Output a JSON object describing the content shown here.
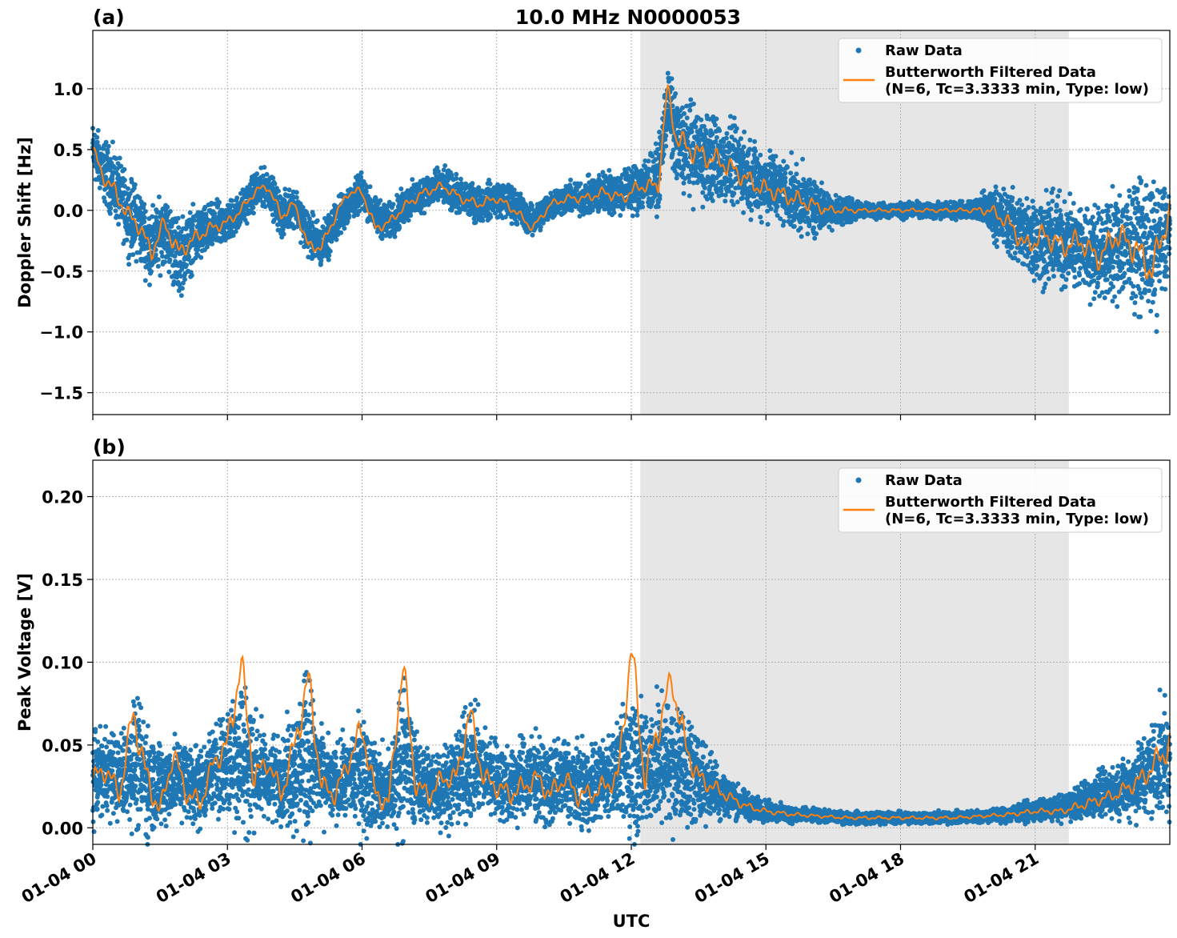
{
  "figure": {
    "title": "10.0 MHz N0000053",
    "xlabel": "UTC",
    "colors": {
      "raw": "#1f77b4",
      "filtered": "#ff7f0e",
      "shade": "#e6e6e6",
      "grid": "#b0b0b0"
    }
  },
  "chart_data": [
    {
      "type": "scatter",
      "panel_label": "(a)",
      "title": "10.0 MHz N0000053",
      "xlabel": "",
      "ylabel": "Doppler Shift [Hz]",
      "x_unit": "hours UTC on 01-04",
      "xlim": [
        0,
        24
      ],
      "ylim": [
        -1.68,
        1.48
      ],
      "yticks": [
        1.0,
        0.5,
        0.0,
        -0.5,
        -1.0,
        -1.5
      ],
      "ytick_labels": [
        "1.0",
        "0.5",
        "0.0",
        "−0.5",
        "−1.0",
        "−1.5"
      ],
      "grid": true,
      "legend_position": "top-right",
      "shaded_span": [
        12.2,
        21.75
      ],
      "series": [
        {
          "name": "Raw Data",
          "style": "points",
          "x": [
            0.0,
            0.2,
            0.5,
            0.8,
            1.0,
            1.3,
            1.6,
            1.9,
            2.2,
            2.6,
            3.0,
            3.3,
            3.6,
            3.9,
            4.2,
            4.5,
            4.8,
            5.1,
            5.4,
            5.7,
            6.0,
            6.3,
            6.6,
            7.0,
            7.4,
            7.8,
            8.2,
            8.6,
            9.0,
            9.4,
            9.8,
            10.2,
            10.6,
            11.0,
            11.4,
            11.8,
            12.2,
            12.6,
            12.8,
            13.0,
            13.3,
            13.6,
            14.0,
            14.4,
            14.8,
            15.2,
            15.6,
            16.0,
            16.4,
            16.8,
            17.2,
            17.6,
            18.0,
            18.4,
            18.8,
            19.2,
            19.6,
            20.0,
            20.4,
            20.8,
            21.2,
            21.6,
            22.0,
            22.4,
            22.8,
            23.2,
            23.6,
            24.0
          ],
          "y": [
            0.5,
            0.35,
            0.2,
            -0.05,
            -0.1,
            -0.3,
            -0.15,
            -0.4,
            -0.25,
            -0.15,
            -0.1,
            0.0,
            0.15,
            0.2,
            -0.05,
            0.05,
            -0.2,
            -0.3,
            -0.1,
            0.05,
            0.15,
            -0.05,
            -0.1,
            0.05,
            0.15,
            0.2,
            0.1,
            0.05,
            0.1,
            0.05,
            -0.1,
            0.05,
            0.1,
            0.1,
            0.15,
            0.15,
            0.2,
            0.25,
            0.9,
            0.55,
            0.5,
            0.45,
            0.4,
            0.35,
            0.25,
            0.2,
            0.1,
            0.05,
            0.0,
            0.0,
            0.0,
            0.0,
            0.0,
            0.0,
            0.0,
            0.0,
            0.0,
            0.0,
            -0.1,
            -0.2,
            -0.25,
            -0.25,
            -0.3,
            -0.35,
            -0.3,
            -0.25,
            -0.35,
            -0.2
          ],
          "spread": [
            0.18,
            0.2,
            0.22,
            0.24,
            0.25,
            0.24,
            0.22,
            0.26,
            0.2,
            0.16,
            0.14,
            0.12,
            0.12,
            0.12,
            0.14,
            0.13,
            0.15,
            0.15,
            0.14,
            0.12,
            0.12,
            0.12,
            0.12,
            0.12,
            0.12,
            0.12,
            0.12,
            0.12,
            0.12,
            0.12,
            0.1,
            0.1,
            0.1,
            0.12,
            0.14,
            0.15,
            0.18,
            0.2,
            0.25,
            0.3,
            0.3,
            0.3,
            0.28,
            0.26,
            0.24,
            0.22,
            0.22,
            0.2,
            0.12,
            0.08,
            0.05,
            0.05,
            0.05,
            0.05,
            0.05,
            0.05,
            0.06,
            0.15,
            0.22,
            0.26,
            0.3,
            0.3,
            0.3,
            0.3,
            0.35,
            0.4,
            0.45,
            0.35
          ]
        },
        {
          "name": "Butterworth Filtered Data\n(N=6, Tc=3.3333 min, Type: low)",
          "style": "line",
          "x": [
            0.0,
            0.2,
            0.5,
            0.8,
            1.0,
            1.3,
            1.6,
            1.9,
            2.2,
            2.6,
            3.0,
            3.3,
            3.6,
            3.9,
            4.2,
            4.5,
            4.8,
            5.1,
            5.4,
            5.7,
            6.0,
            6.3,
            6.6,
            7.0,
            7.4,
            7.8,
            8.2,
            8.6,
            9.0,
            9.4,
            9.8,
            10.2,
            10.6,
            11.0,
            11.4,
            11.8,
            12.2,
            12.6,
            12.8,
            13.0,
            13.3,
            13.6,
            14.0,
            14.4,
            14.8,
            15.2,
            15.6,
            16.0,
            16.4,
            16.8,
            17.2,
            17.6,
            18.0,
            18.4,
            18.8,
            19.2,
            19.6,
            20.0,
            20.4,
            20.8,
            21.2,
            21.6,
            22.0,
            22.4,
            22.8,
            23.2,
            23.6,
            24.0
          ],
          "y": [
            0.5,
            0.3,
            0.15,
            -0.05,
            -0.1,
            -0.35,
            -0.1,
            -0.35,
            -0.25,
            -0.15,
            -0.1,
            0.0,
            0.15,
            0.2,
            -0.05,
            0.05,
            -0.3,
            -0.3,
            -0.05,
            0.15,
            0.15,
            -0.15,
            -0.1,
            0.05,
            0.15,
            0.2,
            0.1,
            0.05,
            0.1,
            0.0,
            -0.15,
            0.05,
            0.1,
            0.1,
            0.15,
            0.1,
            0.2,
            0.2,
            1.0,
            0.6,
            0.5,
            0.45,
            0.4,
            0.3,
            0.2,
            0.15,
            0.1,
            0.05,
            0.0,
            0.0,
            0.0,
            0.0,
            0.0,
            0.0,
            0.0,
            0.0,
            0.0,
            0.0,
            -0.1,
            -0.3,
            -0.2,
            -0.3,
            -0.25,
            -0.4,
            -0.2,
            -0.3,
            -0.5,
            0.0
          ]
        }
      ]
    },
    {
      "type": "scatter",
      "panel_label": "(b)",
      "title": "",
      "xlabel": "UTC",
      "ylabel": "Peak Voltage [V]",
      "x_unit": "hours UTC on 01-04",
      "xlim": [
        0,
        24
      ],
      "ylim": [
        -0.01,
        0.222
      ],
      "yticks": [
        0.2,
        0.15,
        0.1,
        0.05,
        0.0
      ],
      "ytick_labels": [
        "0.20",
        "0.15",
        "0.10",
        "0.05",
        "0.00"
      ],
      "xticks": [
        0,
        3,
        6,
        9,
        12,
        15,
        18,
        21
      ],
      "xtick_labels": [
        "01-04 00",
        "01-04 03",
        "01-04 06",
        "01-04 09",
        "01-04 12",
        "01-04 15",
        "01-04 18",
        "01-04 21"
      ],
      "grid": true,
      "legend_position": "top-right",
      "shaded_span": [
        12.2,
        21.75
      ],
      "series": [
        {
          "name": "Raw Data",
          "style": "points",
          "x": [
            0.0,
            0.3,
            0.6,
            0.9,
            1.2,
            1.5,
            1.8,
            2.1,
            2.4,
            2.7,
            3.0,
            3.3,
            3.6,
            3.9,
            4.2,
            4.5,
            4.8,
            5.1,
            5.4,
            5.7,
            6.0,
            6.3,
            6.6,
            6.9,
            7.2,
            7.5,
            7.8,
            8.1,
            8.4,
            8.7,
            9.0,
            9.3,
            9.6,
            9.9,
            10.2,
            10.5,
            10.8,
            11.1,
            11.4,
            11.7,
            12.0,
            12.3,
            12.6,
            12.9,
            13.2,
            13.5,
            13.8,
            14.1,
            14.4,
            14.7,
            15.0,
            15.6,
            16.2,
            16.8,
            17.4,
            18.0,
            18.6,
            19.2,
            19.8,
            20.4,
            21.0,
            21.6,
            22.2,
            22.8,
            23.4,
            24.0
          ],
          "y": [
            0.03,
            0.035,
            0.03,
            0.04,
            0.03,
            0.025,
            0.03,
            0.03,
            0.025,
            0.035,
            0.04,
            0.045,
            0.035,
            0.03,
            0.03,
            0.035,
            0.045,
            0.03,
            0.025,
            0.03,
            0.035,
            0.025,
            0.02,
            0.045,
            0.03,
            0.025,
            0.025,
            0.03,
            0.04,
            0.035,
            0.03,
            0.025,
            0.03,
            0.03,
            0.025,
            0.03,
            0.025,
            0.025,
            0.03,
            0.035,
            0.04,
            0.035,
            0.04,
            0.04,
            0.035,
            0.03,
            0.025,
            0.02,
            0.015,
            0.012,
            0.01,
            0.008,
            0.007,
            0.006,
            0.006,
            0.006,
            0.006,
            0.006,
            0.007,
            0.008,
            0.01,
            0.012,
            0.018,
            0.022,
            0.03,
            0.045
          ],
          "spread": [
            0.02,
            0.02,
            0.02,
            0.03,
            0.03,
            0.02,
            0.02,
            0.02,
            0.02,
            0.02,
            0.03,
            0.04,
            0.03,
            0.02,
            0.02,
            0.03,
            0.04,
            0.02,
            0.02,
            0.02,
            0.03,
            0.02,
            0.02,
            0.04,
            0.02,
            0.02,
            0.02,
            0.02,
            0.03,
            0.02,
            0.02,
            0.02,
            0.02,
            0.02,
            0.02,
            0.02,
            0.02,
            0.02,
            0.02,
            0.02,
            0.04,
            0.03,
            0.03,
            0.03,
            0.03,
            0.02,
            0.015,
            0.012,
            0.008,
            0.006,
            0.005,
            0.004,
            0.003,
            0.003,
            0.003,
            0.003,
            0.003,
            0.003,
            0.003,
            0.004,
            0.005,
            0.006,
            0.01,
            0.012,
            0.02,
            0.03
          ]
        },
        {
          "name": "Butterworth Filtered Data\n(N=6, Tc=3.3333 min, Type: low)",
          "style": "line",
          "x": [
            0.0,
            0.3,
            0.6,
            0.9,
            1.2,
            1.5,
            1.8,
            2.1,
            2.4,
            2.7,
            3.0,
            3.3,
            3.6,
            3.9,
            4.2,
            4.5,
            4.8,
            5.1,
            5.4,
            5.7,
            6.0,
            6.3,
            6.6,
            6.9,
            7.2,
            7.5,
            7.8,
            8.1,
            8.4,
            8.7,
            9.0,
            9.3,
            9.6,
            9.9,
            10.2,
            10.5,
            10.8,
            11.1,
            11.4,
            11.7,
            12.0,
            12.3,
            12.6,
            12.9,
            13.2,
            13.5,
            13.8,
            14.1,
            14.4,
            14.7,
            15.0,
            15.6,
            16.2,
            16.8,
            17.4,
            18.0,
            18.6,
            19.2,
            19.8,
            20.4,
            21.0,
            21.6,
            22.2,
            22.8,
            23.4,
            24.0
          ],
          "y": [
            0.03,
            0.035,
            0.02,
            0.07,
            0.03,
            0.01,
            0.045,
            0.02,
            0.015,
            0.04,
            0.05,
            0.1,
            0.03,
            0.04,
            0.02,
            0.05,
            0.09,
            0.025,
            0.02,
            0.04,
            0.06,
            0.02,
            0.015,
            0.1,
            0.025,
            0.02,
            0.03,
            0.03,
            0.07,
            0.03,
            0.025,
            0.02,
            0.025,
            0.03,
            0.02,
            0.03,
            0.02,
            0.02,
            0.025,
            0.03,
            0.11,
            0.03,
            0.06,
            0.09,
            0.05,
            0.03,
            0.025,
            0.02,
            0.015,
            0.012,
            0.01,
            0.008,
            0.007,
            0.006,
            0.006,
            0.006,
            0.006,
            0.006,
            0.007,
            0.008,
            0.01,
            0.01,
            0.015,
            0.02,
            0.03,
            0.05
          ]
        }
      ]
    }
  ]
}
